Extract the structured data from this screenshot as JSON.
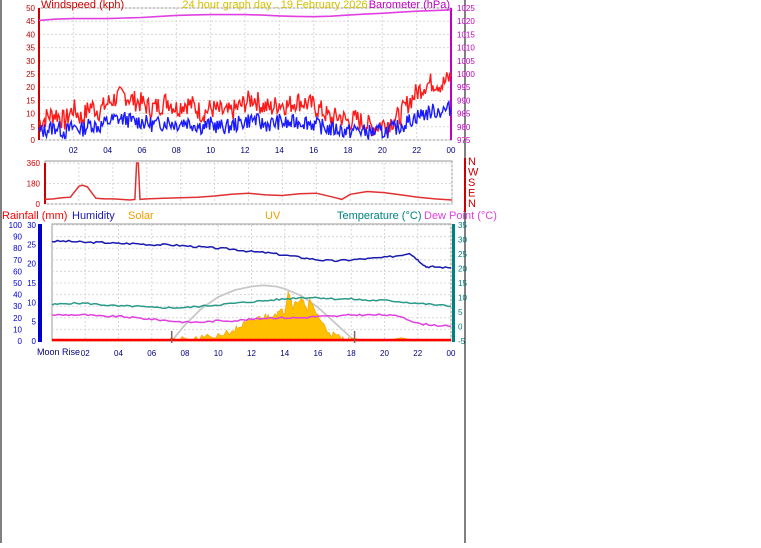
{
  "header": {
    "left_label": "Windspeed (kph)",
    "title": "24 hour graph day . 19 February 2026",
    "right_label": "Barometer (hPa)"
  },
  "colors": {
    "wind_gust": "#ff1a1a",
    "wind_avg": "#1a1aff",
    "barometer": "#e040e0",
    "direction": "#e03030",
    "humidity": "#1a1ab0",
    "temperature": "#2a9a8a",
    "dewpoint": "#e040e0",
    "solar": "#f0a000",
    "solar_fill": "#ffc000",
    "rain": "#ff0000",
    "daylight_arc": "#c8c8c8",
    "left_axis": "#cc0000",
    "right_axis": "#c000c0",
    "rain_axis": "#0000cc",
    "temp_axis": "#008080",
    "grid": "#d8d8d8",
    "title": "#d4c000"
  },
  "x_ticks": [
    "02",
    "04",
    "06",
    "08",
    "10",
    "12",
    "14",
    "16",
    "18",
    "20",
    "22",
    "00"
  ],
  "chart_data": [
    {
      "id": "wind",
      "type": "line",
      "x_range_hours": [
        0,
        24
      ],
      "left_axis": {
        "label": "Windspeed (kph)",
        "range": [
          0,
          50
        ],
        "ticks": [
          0,
          5,
          10,
          15,
          20,
          25,
          30,
          35,
          40,
          45,
          50
        ]
      },
      "right_axis": {
        "label": "Barometer (hPa)",
        "range": [
          975,
          1025
        ],
        "ticks": [
          975,
          980,
          985,
          990,
          995,
          1000,
          1005,
          1010,
          1015,
          1020,
          1025
        ]
      },
      "series": [
        {
          "key": "gust",
          "axis": "left",
          "x": [
            0,
            0.5,
            1,
            1.5,
            2,
            2.5,
            3,
            3.5,
            4,
            4.5,
            5,
            5.5,
            6,
            6.5,
            7,
            7.5,
            8,
            8.5,
            9,
            9.5,
            10,
            10.5,
            11,
            11.5,
            12,
            12.5,
            13,
            13.5,
            14,
            14.5,
            15,
            15.5,
            16,
            16.5,
            17,
            17.5,
            18,
            18.5,
            19,
            19.5,
            20,
            20.5,
            21,
            21.5,
            22,
            22.5,
            23,
            23.5,
            24
          ],
          "y": [
            6,
            9,
            10,
            7,
            12,
            8,
            13,
            11,
            14,
            16,
            17,
            15,
            14,
            12,
            13,
            15,
            12,
            14,
            13,
            10,
            12,
            11,
            10,
            12,
            14,
            16,
            13,
            12,
            14,
            13,
            15,
            14,
            13,
            11,
            8,
            9,
            7,
            8,
            6,
            5,
            6,
            7,
            9,
            14,
            18,
            21,
            22,
            21,
            24
          ]
        },
        {
          "key": "average",
          "axis": "left",
          "x": [
            0,
            0.5,
            1,
            1.5,
            2,
            2.5,
            3,
            3.5,
            4,
            4.5,
            5,
            5.5,
            6,
            6.5,
            7,
            7.5,
            8,
            8.5,
            9,
            9.5,
            10,
            10.5,
            11,
            11.5,
            12,
            12.5,
            13,
            13.5,
            14,
            14.5,
            15,
            15.5,
            16,
            16.5,
            17,
            17.5,
            18,
            18.5,
            19,
            19.5,
            20,
            20.5,
            21,
            21.5,
            22,
            22.5,
            23,
            23.5,
            24
          ],
          "y": [
            3,
            4,
            5,
            3,
            5,
            4,
            6,
            5,
            7,
            8,
            8,
            7,
            7,
            6,
            6,
            7,
            6,
            7,
            6,
            5,
            6,
            5,
            5,
            6,
            7,
            8,
            6,
            6,
            7,
            6,
            7,
            7,
            6,
            5,
            4,
            4,
            3,
            4,
            3,
            3,
            3,
            4,
            5,
            7,
            9,
            10,
            11,
            11,
            12
          ]
        },
        {
          "key": "barometer",
          "axis": "right",
          "x": [
            0,
            1,
            2,
            3,
            4,
            5,
            6,
            7,
            8,
            9,
            10,
            11,
            12,
            13,
            14,
            15,
            16,
            17,
            18,
            19,
            20,
            21,
            22,
            23,
            24
          ],
          "y": [
            1020.3,
            1020.8,
            1021.0,
            1021.0,
            1021.0,
            1021.2,
            1021.4,
            1021.8,
            1022.2,
            1022.4,
            1022.5,
            1022.5,
            1022.5,
            1022.3,
            1022.0,
            1021.8,
            1021.7,
            1021.9,
            1022.3,
            1022.7,
            1023.0,
            1023.4,
            1023.8,
            1024.0,
            1024.3
          ]
        }
      ]
    },
    {
      "id": "direction",
      "type": "line",
      "x_range_hours": [
        0,
        24
      ],
      "axis": {
        "range": [
          0,
          360
        ],
        "ticks": [
          0,
          180,
          360
        ]
      },
      "compass_labels": [
        "N",
        "W",
        "S",
        "E",
        "N"
      ],
      "series": [
        {
          "key": "direction",
          "x": [
            0,
            0.5,
            1,
            1.5,
            2,
            2.2,
            2.5,
            3,
            3.5,
            4,
            4.5,
            5,
            5.3,
            5.4,
            5.5,
            5.6,
            6,
            7,
            8,
            9,
            10,
            11,
            12,
            13,
            14,
            15,
            16,
            17,
            17.5,
            18,
            19,
            20,
            20.5,
            21,
            22,
            23,
            24
          ],
          "y": [
            40,
            45,
            55,
            60,
            155,
            165,
            150,
            50,
            45,
            45,
            40,
            35,
            40,
            360,
            360,
            40,
            45,
            50,
            55,
            60,
            70,
            85,
            95,
            80,
            75,
            90,
            95,
            60,
            40,
            85,
            110,
            100,
            90,
            80,
            60,
            45,
            35
          ]
        }
      ]
    },
    {
      "id": "climate",
      "type": "line",
      "x_range_hours": [
        0,
        24
      ],
      "x_start_label": "Moon Rise",
      "rain_axis": {
        "label": "Rainfall (mm)",
        "range": [
          0,
          30
        ],
        "ticks": [
          0,
          5,
          10,
          15,
          20,
          25,
          30
        ]
      },
      "humidity_axis": {
        "label": "Humidity",
        "range": [
          0,
          100
        ],
        "ticks": [
          0,
          10,
          20,
          30,
          40,
          50,
          60,
          70,
          80,
          90,
          100
        ]
      },
      "temperature_axis": {
        "label": "Temperature (°C)",
        "range": [
          -5,
          35
        ],
        "ticks": [
          -5,
          0,
          5,
          10,
          15,
          20,
          25,
          30,
          35
        ]
      },
      "legend": [
        "Rainfall (mm)",
        "Humidity",
        "Solar",
        "UV",
        "Temperature (°C)",
        "Dew Point (°C)"
      ],
      "day_markers_hours": [
        7.2,
        18.2
      ],
      "series": [
        {
          "key": "humidity",
          "axis": "humidity",
          "x": [
            0,
            1,
            2,
            3,
            4,
            5,
            6,
            7,
            8,
            9,
            10,
            11,
            12,
            13,
            14,
            15,
            16,
            17,
            18,
            19,
            20,
            21,
            21.5,
            22,
            22.5,
            23,
            24
          ],
          "y": [
            86,
            86,
            85,
            85,
            84,
            84,
            83,
            83,
            82,
            81,
            80,
            79,
            77,
            76,
            74,
            72,
            70,
            69,
            70,
            71,
            72,
            74,
            76,
            70,
            64,
            64,
            63
          ]
        },
        {
          "key": "temperature",
          "axis": "temperature",
          "x": [
            0,
            1,
            2,
            3,
            4,
            5,
            6,
            7,
            8,
            9,
            10,
            11,
            12,
            13,
            14,
            15,
            16,
            17,
            18,
            19,
            20,
            21,
            22,
            23,
            24
          ],
          "y": [
            7.5,
            8,
            8,
            7.5,
            7,
            7,
            6.5,
            6.5,
            6.5,
            7,
            7.5,
            8,
            8.5,
            9,
            9.5,
            10,
            10,
            9.5,
            9.5,
            9,
            9,
            8.5,
            8,
            7.5,
            7
          ]
        },
        {
          "key": "dewpoint",
          "axis": "temperature",
          "x": [
            0,
            1,
            2,
            3,
            4,
            5,
            6,
            7,
            8,
            9,
            10,
            11,
            12,
            13,
            14,
            15,
            16,
            17,
            18,
            19,
            20,
            21,
            22,
            23,
            24
          ],
          "y": [
            4,
            4,
            4,
            3.5,
            3.5,
            3,
            2.5,
            2,
            1.5,
            1.5,
            2,
            2,
            2.5,
            3,
            3,
            3,
            3.5,
            3.5,
            4,
            4,
            4,
            3.5,
            1,
            0.5,
            0
          ]
        },
        {
          "key": "solar",
          "axis": "humidity",
          "x": [
            0,
            7,
            8,
            9,
            10,
            11,
            11.5,
            12,
            12.5,
            13,
            13.5,
            14,
            14.2,
            14.5,
            15,
            15.3,
            15.5,
            16,
            16.5,
            17,
            17.5,
            18,
            24
          ],
          "y": [
            0,
            0,
            1,
            2,
            5,
            10,
            14,
            17,
            20,
            22,
            24,
            26,
            44,
            30,
            38,
            26,
            34,
            22,
            10,
            5,
            2,
            0,
            0
          ]
        },
        {
          "key": "daylight",
          "axis": "humidity",
          "x": [
            7.2,
            8,
            9,
            10,
            11,
            12,
            12.7,
            13.5,
            14,
            15,
            16,
            17,
            18.2
          ],
          "y": [
            0,
            14,
            28,
            38,
            44,
            47,
            48,
            47,
            45,
            39,
            29,
            16,
            0
          ]
        },
        {
          "key": "rainfall",
          "axis": "rain",
          "x": [
            0,
            24
          ],
          "y": [
            0,
            0
          ]
        }
      ]
    }
  ]
}
